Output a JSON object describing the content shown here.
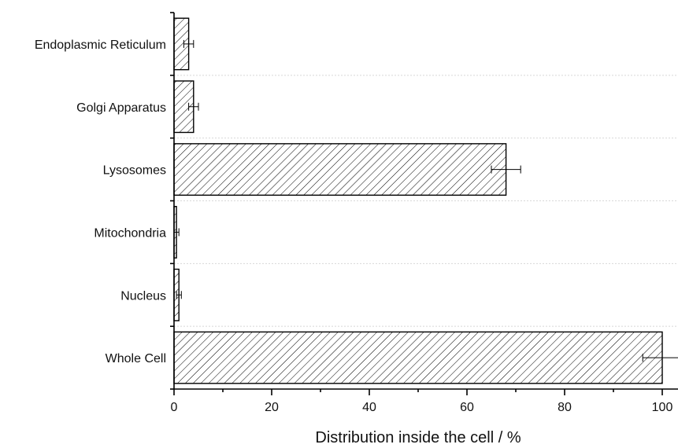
{
  "chart_data": {
    "type": "bar",
    "orientation": "horizontal",
    "categories": [
      "Endoplasmic Reticulum",
      "Golgi Apparatus",
      "Lysosomes",
      "Mitochondria",
      "Nucleus",
      "Whole Cell"
    ],
    "values": [
      3,
      4,
      68,
      0.5,
      1,
      100
    ],
    "errors": [
      1,
      1,
      3,
      0.5,
      0.5,
      4
    ],
    "xlabel": "Distribution inside the cell / %",
    "ylabel": "",
    "xlim": [
      0,
      100
    ],
    "xticks": [
      "0",
      "20",
      "40",
      "60",
      "80",
      "100"
    ],
    "bar_pattern": "diagonal-hatch",
    "grid": "horizontal dashed separators between categories"
  }
}
